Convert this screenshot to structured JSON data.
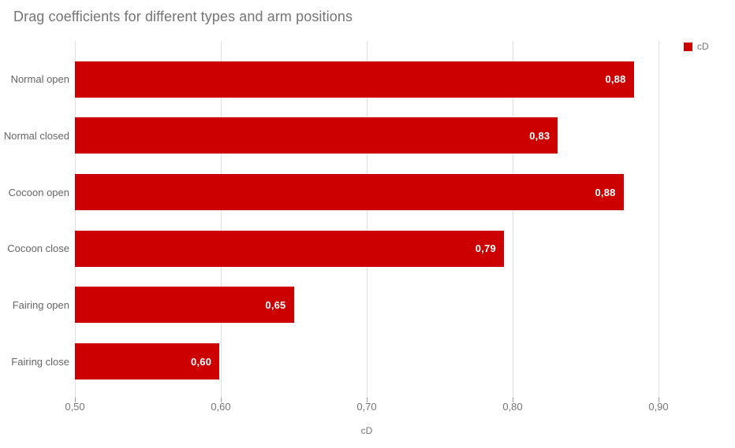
{
  "chart_data": {
    "type": "bar",
    "orientation": "horizontal",
    "title": "Drag coefficients for different types and arm positions",
    "categories": [
      "Normal open",
      "Normal closed",
      "Cocoon open",
      "Cocoon close",
      "Fairing open",
      "Fairing close"
    ],
    "series": [
      {
        "name": "cD",
        "color": "#cc0000",
        "values": [
          0.883,
          0.831,
          0.876,
          0.794,
          0.65,
          0.599
        ],
        "value_labels": [
          "0,88",
          "0,83",
          "0,88",
          "0,79",
          "0,65",
          "0,60"
        ]
      }
    ],
    "xlabel": "cD",
    "ylabel": "",
    "xlim": [
      0.5,
      0.9
    ],
    "x_ticks": [
      0.5,
      0.6,
      0.7,
      0.8,
      0.9
    ],
    "x_tick_labels": [
      "0,50",
      "0,60",
      "0,70",
      "0,80",
      "0,90"
    ],
    "grid": "vertical-only",
    "legend_position": "top-right",
    "value_labels_inside_bars": true
  },
  "colors": {
    "bar": "#cc0000",
    "title_text": "#757575",
    "axis_text": "#757575",
    "category_text": "#666666",
    "value_label_text": "#ffffff",
    "gridline": "#e0e0e0",
    "tick": "#9e9e9e",
    "background": "#ffffff"
  }
}
